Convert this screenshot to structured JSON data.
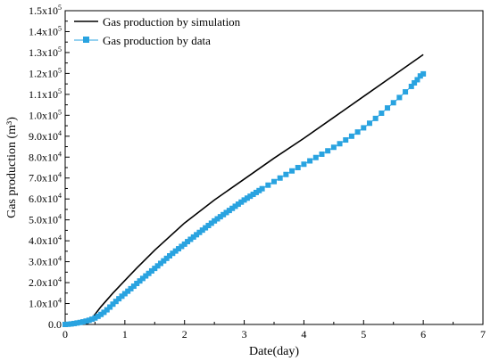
{
  "chart_data": {
    "type": "line",
    "xlabel": "Date(day)",
    "ylabel": "Gas production (m³)",
    "xlim": [
      0,
      7
    ],
    "ylim": [
      0,
      150000
    ],
    "x_ticks": [
      "0",
      "1",
      "2",
      "3",
      "4",
      "5",
      "6",
      "7"
    ],
    "y_ticks": [
      {
        "mantissa": "0.0",
        "exp": ""
      },
      {
        "mantissa": "1.0x10",
        "exp": "4"
      },
      {
        "mantissa": "2.0x10",
        "exp": "4"
      },
      {
        "mantissa": "3.0x10",
        "exp": "4"
      },
      {
        "mantissa": "4.0x10",
        "exp": "4"
      },
      {
        "mantissa": "5.0x10",
        "exp": "4"
      },
      {
        "mantissa": "6.0x10",
        "exp": "4"
      },
      {
        "mantissa": "7.0x10",
        "exp": "4"
      },
      {
        "mantissa": "8.0x10",
        "exp": "4"
      },
      {
        "mantissa": "9.0x10",
        "exp": "4"
      },
      {
        "mantissa": "1.0x10",
        "exp": "5"
      },
      {
        "mantissa": "1.1x10",
        "exp": "5"
      },
      {
        "mantissa": "1.2x10",
        "exp": "5"
      },
      {
        "mantissa": "1.3x10",
        "exp": "5"
      },
      {
        "mantissa": "1.4x10",
        "exp": "5"
      },
      {
        "mantissa": "1.5x10",
        "exp": "5"
      }
    ],
    "grid": false,
    "legend_position": "top-left",
    "series": [
      {
        "name": "Gas production by simulation",
        "color": "#000000",
        "marker": "none",
        "x": [
          0,
          0.2,
          0.38,
          0.45,
          0.6,
          0.8,
          1.0,
          1.2,
          1.5,
          2.0,
          2.5,
          3.0,
          3.5,
          4.0,
          4.5,
          5.0,
          5.5,
          6.0
        ],
        "y": [
          0,
          0,
          500,
          3000,
          8500,
          15000,
          21000,
          27000,
          35500,
          48500,
          59500,
          69500,
          79500,
          89000,
          99000,
          109000,
          119000,
          129000
        ]
      },
      {
        "name": "Gas production by data",
        "color": "#29A3E0",
        "marker": "square",
        "x": [
          0,
          0.05,
          0.1,
          0.15,
          0.2,
          0.25,
          0.3,
          0.35,
          0.4,
          0.45,
          0.5,
          0.55,
          0.6,
          0.65,
          0.7,
          0.75,
          0.8,
          0.85,
          0.9,
          0.95,
          1.0,
          1.05,
          1.1,
          1.15,
          1.2,
          1.25,
          1.3,
          1.35,
          1.4,
          1.45,
          1.5,
          1.55,
          1.6,
          1.65,
          1.7,
          1.75,
          1.8,
          1.85,
          1.9,
          1.95,
          2.0,
          2.05,
          2.1,
          2.15,
          2.2,
          2.25,
          2.3,
          2.35,
          2.4,
          2.45,
          2.5,
          2.55,
          2.6,
          2.65,
          2.7,
          2.75,
          2.8,
          2.85,
          2.9,
          2.95,
          3.0,
          3.05,
          3.1,
          3.15,
          3.2,
          3.25,
          3.3,
          3.4,
          3.5,
          3.6,
          3.7,
          3.8,
          3.9,
          4.0,
          4.1,
          4.2,
          4.3,
          4.4,
          4.5,
          4.6,
          4.7,
          4.8,
          4.9,
          5.0,
          5.1,
          5.2,
          5.3,
          5.4,
          5.5,
          5.6,
          5.7,
          5.8,
          5.85,
          5.9,
          5.95,
          6.0
        ],
        "y": [
          0,
          100,
          250,
          450,
          700,
          950,
          1250,
          1600,
          2000,
          2500,
          3100,
          3900,
          4800,
          5800,
          7000,
          8300,
          9700,
          11000,
          12300,
          13500,
          14700,
          15900,
          17100,
          18300,
          19600,
          20800,
          22000,
          23200,
          24400,
          25600,
          26800,
          28000,
          29200,
          30400,
          31600,
          32800,
          34000,
          35100,
          36200,
          37300,
          38400,
          39600,
          40700,
          41800,
          42900,
          44000,
          45100,
          46200,
          47300,
          48400,
          49500,
          50500,
          51500,
          52500,
          53500,
          54500,
          55500,
          56500,
          57500,
          58500,
          59500,
          60400,
          61300,
          62200,
          63100,
          64000,
          64900,
          66600,
          68300,
          70000,
          71700,
          73400,
          75000,
          76600,
          78200,
          79800,
          81400,
          83000,
          84700,
          86400,
          88200,
          90000,
          92000,
          94000,
          96200,
          98500,
          101000,
          103500,
          106000,
          108500,
          111200,
          113800,
          115500,
          117000,
          118800,
          119800
        ]
      }
    ]
  }
}
